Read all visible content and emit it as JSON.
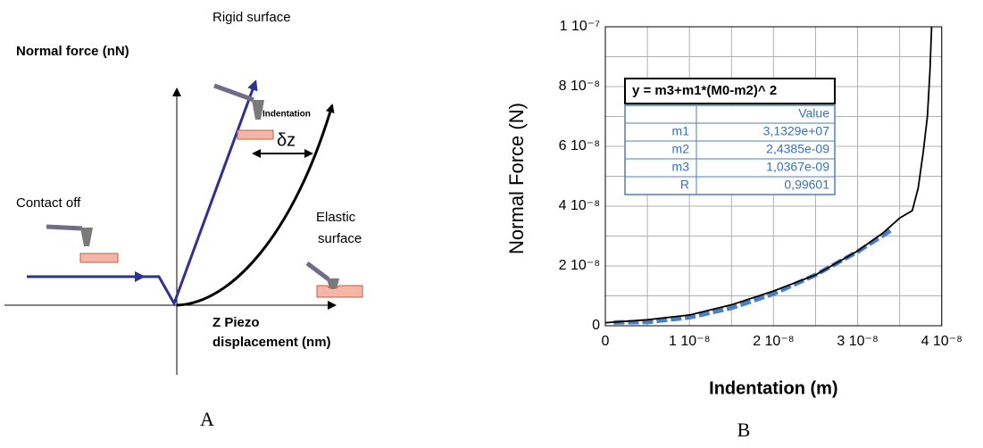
{
  "diagram": {
    "y_axis_label": "Normal force (nN)",
    "rigid_label": "Rigid surface",
    "indentation_label": "Indentation",
    "delta_label": "δz",
    "contact_label": "Contact off",
    "elastic_label": [
      "Elastic",
      "surface"
    ],
    "x_axis_label": [
      "Z Piezo",
      "displacement  (nm)"
    ],
    "panel": "A"
  },
  "chart_data": {
    "type": "line",
    "panel": "B",
    "x_label": "Indentation (m)",
    "y_label": "Normal Force (N)",
    "xlim": [
      0,
      4.3e-08
    ],
    "ylim": [
      0,
      1e-07
    ],
    "xticks": [
      0,
      {
        "value": 1e-08,
        "label": "1 10⁻⁸"
      },
      {
        "value": 2e-08,
        "label": "2 10⁻⁸"
      },
      {
        "value": 3e-08,
        "label": "3 10⁻⁸"
      },
      {
        "value": 4e-08,
        "label": "4 10⁻⁸"
      }
    ],
    "yticks": [
      0,
      {
        "value": 2e-08,
        "label": "2 10⁻⁸"
      },
      {
        "value": 4e-08,
        "label": "4 10⁻⁸"
      },
      {
        "value": 6e-08,
        "label": "6 10⁻⁸"
      },
      {
        "value": 8e-08,
        "label": "8 10⁻⁸"
      },
      {
        "value": 1e-07,
        "label": "1 10⁻⁷"
      }
    ],
    "xminorticks": [
      5e-09,
      1.5e-08,
      2.5e-08,
      3.5e-08
    ],
    "yminorticks": [
      1e-08,
      3e-08,
      5e-08,
      7e-08,
      9e-08
    ],
    "grid": true,
    "series": [
      {
        "color": "#4a7fc4",
        "dashed": true,
        "x": [
          1e-09,
          5e-09,
          1e-08,
          1.5e-08,
          2e-08,
          2.5e-08,
          3e-08,
          3.4e-08
        ],
        "values": [
          1.1e-09,
          1.24e-09,
          2.83e-09,
          5.97e-09,
          1.07e-08,
          1.7e-08,
          2.48e-08,
          3.2e-08
        ]
      },
      {
        "color": "#000000",
        "dashed": false,
        "x": [
          0,
          5e-09,
          1e-08,
          1.5e-08,
          2e-08,
          2.5e-08,
          3e-08,
          3.3e-08,
          3.5e-08,
          3.65e-08,
          3.72e-08,
          3.78e-08,
          3.83e-08,
          3.86e-08,
          3.88e-08
        ],
        "values": [
          1e-09,
          2e-09,
          3.6e-09,
          7e-09,
          1.16e-08,
          1.7e-08,
          2.5e-08,
          3.1e-08,
          3.6e-08,
          3.85e-08,
          4.6e-08,
          5.8e-08,
          7e-08,
          8.5e-08,
          1e-07
        ]
      }
    ],
    "fit_table": {
      "formula": "y = m3+m1*(M0-m2)^ 2",
      "header": "Value",
      "rows": [
        [
          "m1",
          "3,1329e+07"
        ],
        [
          "m2",
          "2,4385e-09"
        ],
        [
          "m3",
          "1,0367e-09"
        ],
        [
          "R",
          "0,99601"
        ]
      ]
    }
  }
}
